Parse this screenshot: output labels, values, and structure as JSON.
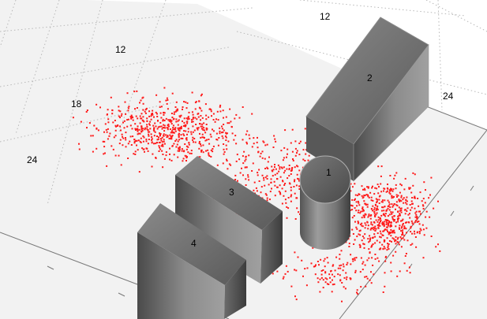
{
  "axis_tick_labels": {
    "top": "12",
    "upper_left": "12",
    "left_mid": "18",
    "left_low": "24",
    "right": "24"
  },
  "objects": [
    {
      "label": "1",
      "shape": "cylinder"
    },
    {
      "label": "2",
      "shape": "box"
    },
    {
      "label": "3",
      "shape": "box"
    },
    {
      "label": "4",
      "shape": "box"
    }
  ],
  "colors": {
    "points": "#ff1a1a",
    "floor": "#f2f2f2",
    "grid": "#b8b8b8",
    "object_dark": "#3a3a3a",
    "object_light": "#9a9a9a"
  },
  "scatter": {
    "point_count": 1700,
    "marker": "dot"
  }
}
